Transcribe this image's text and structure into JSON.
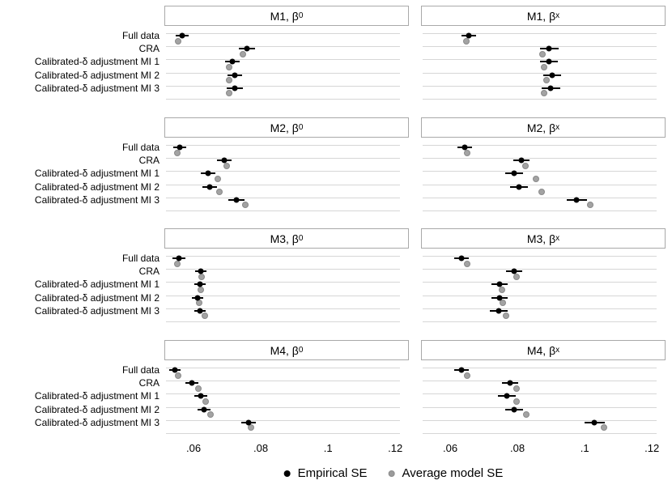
{
  "chart_data": {
    "type": "scatter",
    "description": "Dot-and-error-bar comparison of empirical SE vs average model SE across 8 panels (models M1-M4, parameters beta0 and betax) for five estimation methods",
    "categories": [
      "Full data",
      "CRA",
      "Calibrated-δ adjustment MI 1",
      "Calibrated-δ adjustment MI 2",
      "Calibrated-δ adjustment MI 3"
    ],
    "axis": {
      "range": [
        0.0518,
        0.1214
      ],
      "tick_values": [
        0.06,
        0.08,
        0.1,
        0.12
      ],
      "ticks": [
        ".06",
        ".08",
        ".1",
        ".12"
      ],
      "grid": "horizontal-row-lines"
    },
    "legend": [
      {
        "label": "Empirical SE",
        "color": "#000000"
      },
      {
        "label": "Average model SE",
        "color": "#9b9b9b"
      }
    ],
    "panels": [
      {
        "title": "M1, β",
        "sub": "0",
        "rows": [
          {
            "emp": 0.0566,
            "err": 0.0019,
            "avg": 0.0554
          },
          {
            "emp": 0.0759,
            "err": 0.0024,
            "avg": 0.0747
          },
          {
            "emp": 0.0716,
            "err": 0.0022,
            "avg": 0.0705
          },
          {
            "emp": 0.0722,
            "err": 0.0022,
            "avg": 0.0706
          },
          {
            "emp": 0.0722,
            "err": 0.0024,
            "avg": 0.0705
          }
        ]
      },
      {
        "title": "M1, β",
        "sub": "x",
        "rows": [
          {
            "emp": 0.0655,
            "err": 0.0022,
            "avg": 0.0648
          },
          {
            "emp": 0.0894,
            "err": 0.0028,
            "avg": 0.0875
          },
          {
            "emp": 0.0894,
            "err": 0.0026,
            "avg": 0.088
          },
          {
            "emp": 0.0903,
            "err": 0.0026,
            "avg": 0.0887
          },
          {
            "emp": 0.0899,
            "err": 0.0028,
            "avg": 0.088
          }
        ]
      },
      {
        "title": "M2, β",
        "sub": "0",
        "rows": [
          {
            "emp": 0.0559,
            "err": 0.0019,
            "avg": 0.0552
          },
          {
            "emp": 0.0692,
            "err": 0.0022,
            "avg": 0.0699
          },
          {
            "emp": 0.0643,
            "err": 0.0022,
            "avg": 0.0672
          },
          {
            "emp": 0.0648,
            "err": 0.0022,
            "avg": 0.0677
          },
          {
            "emp": 0.0728,
            "err": 0.0024,
            "avg": 0.0754
          }
        ]
      },
      {
        "title": "M2, β",
        "sub": "x",
        "rows": [
          {
            "emp": 0.0643,
            "err": 0.0022,
            "avg": 0.0651
          },
          {
            "emp": 0.0812,
            "err": 0.0024,
            "avg": 0.0824
          },
          {
            "emp": 0.079,
            "err": 0.0026,
            "avg": 0.0855
          },
          {
            "emp": 0.0805,
            "err": 0.0026,
            "avg": 0.0872
          },
          {
            "emp": 0.0976,
            "err": 0.003,
            "avg": 0.1017
          }
        ]
      },
      {
        "title": "M3, β",
        "sub": "0",
        "rows": [
          {
            "emp": 0.0557,
            "err": 0.0019,
            "avg": 0.0552
          },
          {
            "emp": 0.0622,
            "err": 0.0017,
            "avg": 0.0623
          },
          {
            "emp": 0.0619,
            "err": 0.0017,
            "avg": 0.0622
          },
          {
            "emp": 0.0612,
            "err": 0.0017,
            "avg": 0.0617
          },
          {
            "emp": 0.0619,
            "err": 0.0017,
            "avg": 0.0634
          }
        ]
      },
      {
        "title": "M3, β",
        "sub": "x",
        "rows": [
          {
            "emp": 0.0634,
            "err": 0.0022,
            "avg": 0.0651
          },
          {
            "emp": 0.079,
            "err": 0.0024,
            "avg": 0.0798
          },
          {
            "emp": 0.0747,
            "err": 0.0024,
            "avg": 0.0754
          },
          {
            "emp": 0.0747,
            "err": 0.0024,
            "avg": 0.0757
          },
          {
            "emp": 0.0745,
            "err": 0.0026,
            "avg": 0.0766
          }
        ]
      },
      {
        "title": "M4, β",
        "sub": "0",
        "rows": [
          {
            "emp": 0.0545,
            "err": 0.0017,
            "avg": 0.0554
          },
          {
            "emp": 0.0595,
            "err": 0.0019,
            "avg": 0.0614
          },
          {
            "emp": 0.0622,
            "err": 0.0019,
            "avg": 0.0636
          },
          {
            "emp": 0.0631,
            "err": 0.0019,
            "avg": 0.0651
          },
          {
            "emp": 0.0764,
            "err": 0.0022,
            "avg": 0.0771
          }
        ]
      },
      {
        "title": "M4, β",
        "sub": "x",
        "rows": [
          {
            "emp": 0.0634,
            "err": 0.0022,
            "avg": 0.0651
          },
          {
            "emp": 0.0778,
            "err": 0.0024,
            "avg": 0.0798
          },
          {
            "emp": 0.0769,
            "err": 0.0026,
            "avg": 0.0798
          },
          {
            "emp": 0.079,
            "err": 0.0026,
            "avg": 0.0827
          },
          {
            "emp": 0.1029,
            "err": 0.003,
            "avg": 0.1058
          }
        ]
      }
    ],
    "colors": {
      "empirical_dot": "#000000",
      "average_dot": "#a3a3a3",
      "gridline": "#d6d6d6",
      "panel_border": "#a9a9a9"
    }
  }
}
